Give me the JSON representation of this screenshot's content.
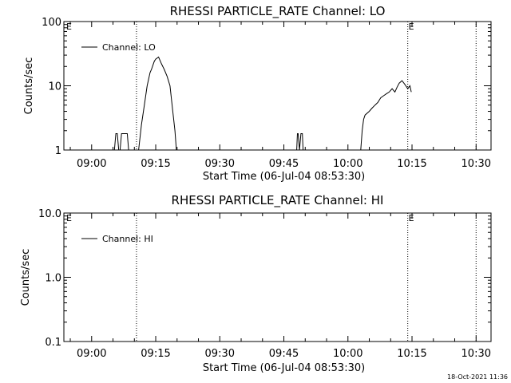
{
  "footer": {
    "timestamp": "18-Oct-2021 11:36"
  },
  "chart_data": [
    {
      "type": "line",
      "title": "RHESSI PARTICLE_RATE Channel: LO",
      "xlabel": "Start Time (06-Jul-04 08:53:30)",
      "ylabel": "Counts/sec",
      "yscale": "log",
      "ylim": [
        1,
        100
      ],
      "xlim": [
        "08:53:30",
        "10:33:30"
      ],
      "x_ticks": [
        "09:00",
        "09:15",
        "09:30",
        "09:45",
        "10:00",
        "10:15",
        "10:30"
      ],
      "y_ticks": [
        "1",
        "10",
        "100"
      ],
      "legend": {
        "label": "Channel: LO",
        "placement": "top-left"
      },
      "markers": [
        {
          "x": "09:10:30",
          "label": ""
        },
        {
          "x": "10:14:00",
          "label": "E"
        },
        {
          "x": "10:30:00",
          "label": ""
        }
      ],
      "corner_label": "E",
      "series": [
        {
          "name": "Channel: LO",
          "x": [
            "09:05:20",
            "09:05:40",
            "09:06:00",
            "09:06:20",
            "09:06:40",
            "09:07:00",
            "09:07:20",
            "09:07:40",
            "09:08:00",
            "09:08:20",
            "09:08:40",
            "09:11:00",
            "09:11:40",
            "09:12:20",
            "09:13:00",
            "09:13:40",
            "09:14:00",
            "09:14:40",
            "09:15:00",
            "09:15:40",
            "09:16:20",
            "09:17:00",
            "09:17:40",
            "09:18:20",
            "09:19:00",
            "09:19:30",
            "09:19:50",
            "09:48:00",
            "09:48:10",
            "09:48:20",
            "09:48:40",
            "09:49:00",
            "09:49:20",
            "09:49:30",
            "10:03:00",
            "10:03:20",
            "10:03:40",
            "10:04:00",
            "10:05:00",
            "10:05:40",
            "10:06:20",
            "10:07:00",
            "10:07:40",
            "10:08:20",
            "10:09:00",
            "10:09:40",
            "10:10:20",
            "10:11:00",
            "10:11:30",
            "10:12:00",
            "10:12:40",
            "10:13:20",
            "10:14:00",
            "10:14:30",
            "10:14:50"
          ],
          "values": [
            1,
            1.8,
            1.8,
            1,
            1,
            1.8,
            1.8,
            1.8,
            1.8,
            1.8,
            1,
            1,
            2.5,
            5,
            10,
            16,
            18,
            24,
            26,
            28,
            22,
            18,
            14,
            10,
            4,
            2,
            1,
            1,
            1.8,
            1.8,
            1,
            1.8,
            1.8,
            1,
            1,
            2,
            3,
            3.5,
            4,
            4.5,
            5,
            5.5,
            6.5,
            7,
            7.5,
            8,
            9,
            8,
            9.5,
            11,
            12,
            10.5,
            9,
            10,
            8
          ],
          "gaps_after_index": [
            10,
            26,
            33
          ]
        }
      ]
    },
    {
      "type": "line",
      "title": "RHESSI PARTICLE_RATE Channel: HI",
      "xlabel": "Start Time (06-Jul-04 08:53:30)",
      "ylabel": "Counts/sec",
      "yscale": "log",
      "ylim": [
        0.1,
        10
      ],
      "xlim": [
        "08:53:30",
        "10:33:30"
      ],
      "x_ticks": [
        "09:00",
        "09:15",
        "09:30",
        "09:45",
        "10:00",
        "10:15",
        "10:30"
      ],
      "y_ticks": [
        "0.1",
        "1.0",
        "10.0"
      ],
      "legend": {
        "label": "Channel: HI",
        "placement": "top-left"
      },
      "markers": [
        {
          "x": "09:10:30",
          "label": ""
        },
        {
          "x": "10:14:00",
          "label": "E"
        },
        {
          "x": "10:30:00",
          "label": ""
        }
      ],
      "corner_label": "E",
      "series": [
        {
          "name": "Channel: HI",
          "x": [],
          "values": []
        }
      ]
    }
  ]
}
